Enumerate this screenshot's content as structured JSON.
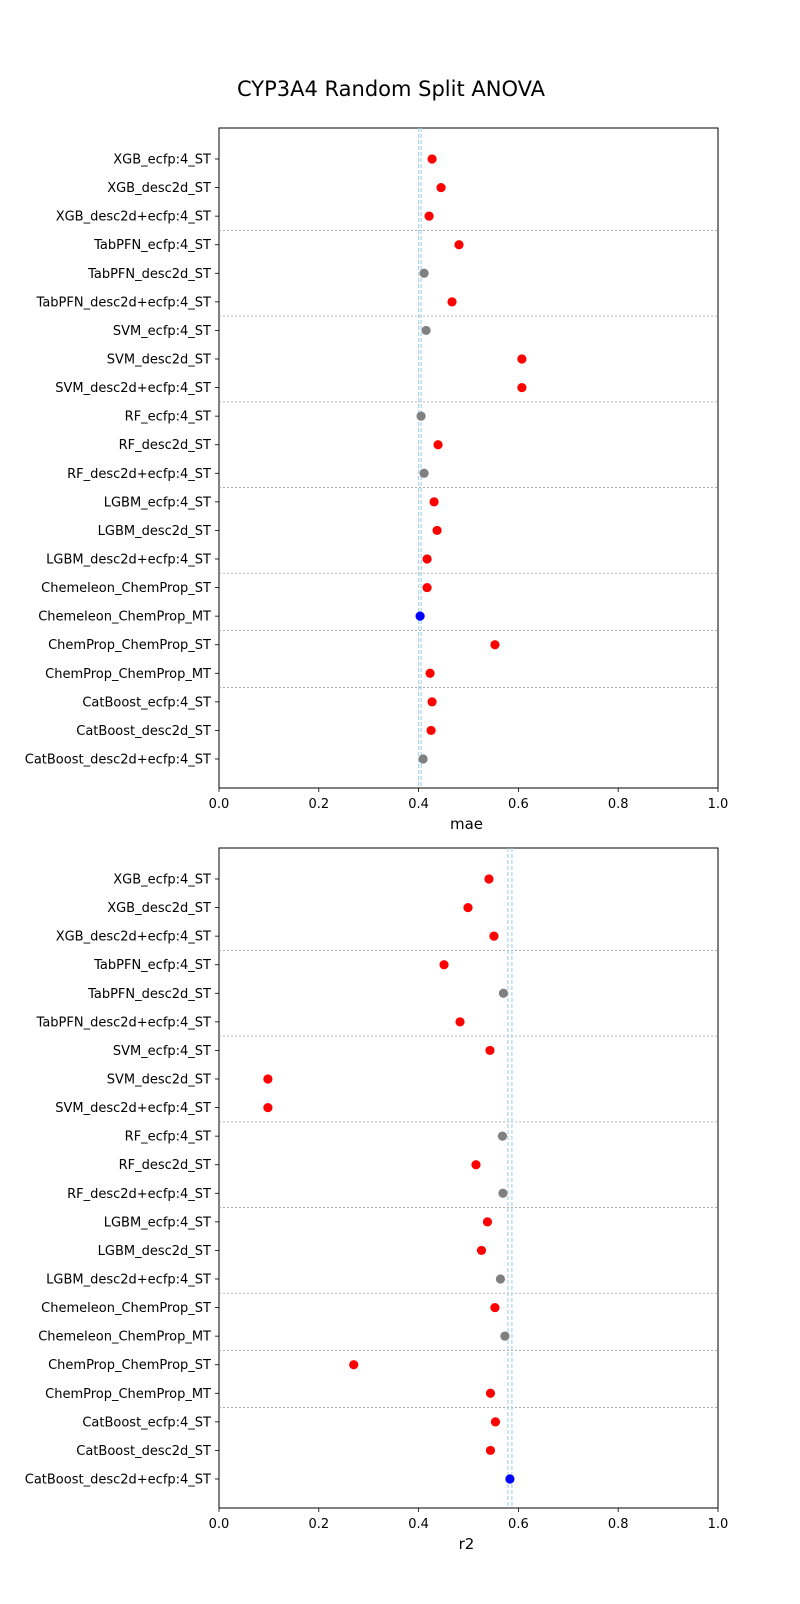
{
  "chart_data": [
    {
      "type": "scatter",
      "title": "CYP3A4 Random Split ANOVA",
      "xlabel": "mae",
      "ylabel": "",
      "xlim": [
        0.0,
        1.0
      ],
      "xticks": [
        "0.0",
        "0.2",
        "0.4",
        "0.6",
        "0.8",
        "1.0"
      ],
      "reference_lines": [
        0.4,
        0.405
      ],
      "categories": [
        "XGB_ecfp:4_ST",
        "XGB_desc2d_ST",
        "XGB_desc2d+ecfp:4_ST",
        "TabPFN_ecfp:4_ST",
        "TabPFN_desc2d_ST",
        "TabPFN_desc2d+ecfp:4_ST",
        "SVM_ecfp:4_ST",
        "SVM_desc2d_ST",
        "SVM_desc2d+ecfp:4_ST",
        "RF_ecfp:4_ST",
        "RF_desc2d_ST",
        "RF_desc2d+ecfp:4_ST",
        "LGBM_ecfp:4_ST",
        "LGBM_desc2d_ST",
        "LGBM_desc2d+ecfp:4_ST",
        "Chemeleon_ChemProp_ST",
        "Chemeleon_ChemProp_MT",
        "ChemProp_ChemProp_ST",
        "ChemProp_ChemProp_MT",
        "CatBoost_ecfp:4_ST",
        "CatBoost_desc2d_ST",
        "CatBoost_desc2d+ecfp:4_ST"
      ],
      "values": [
        0.427,
        0.445,
        0.421,
        0.481,
        0.411,
        0.467,
        0.415,
        0.607,
        0.607,
        0.405,
        0.439,
        0.411,
        0.431,
        0.437,
        0.417,
        0.417,
        0.403,
        0.553,
        0.423,
        0.427,
        0.425,
        0.409
      ],
      "status": [
        "sig",
        "sig",
        "sig",
        "sig",
        "ns",
        "sig",
        "ns",
        "sig",
        "sig",
        "ns",
        "sig",
        "ns",
        "sig",
        "sig",
        "sig",
        "sig",
        "best",
        "sig",
        "sig",
        "sig",
        "sig",
        "ns"
      ],
      "group_breaks_after": [
        3,
        6,
        9,
        12,
        15,
        17,
        19
      ]
    },
    {
      "type": "scatter",
      "title": "",
      "xlabel": "r2",
      "ylabel": "",
      "xlim": [
        0.0,
        1.0
      ],
      "xticks": [
        "0.0",
        "0.2",
        "0.4",
        "0.6",
        "0.8",
        "1.0"
      ],
      "reference_lines": [
        0.579,
        0.587
      ],
      "categories": [
        "XGB_ecfp:4_ST",
        "XGB_desc2d_ST",
        "XGB_desc2d+ecfp:4_ST",
        "TabPFN_ecfp:4_ST",
        "TabPFN_desc2d_ST",
        "TabPFN_desc2d+ecfp:4_ST",
        "SVM_ecfp:4_ST",
        "SVM_desc2d_ST",
        "SVM_desc2d+ecfp:4_ST",
        "RF_ecfp:4_ST",
        "RF_desc2d_ST",
        "RF_desc2d+ecfp:4_ST",
        "LGBM_ecfp:4_ST",
        "LGBM_desc2d_ST",
        "LGBM_desc2d+ecfp:4_ST",
        "Chemeleon_ChemProp_ST",
        "Chemeleon_ChemProp_MT",
        "ChemProp_ChemProp_ST",
        "ChemProp_ChemProp_MT",
        "CatBoost_ecfp:4_ST",
        "CatBoost_desc2d_ST",
        "CatBoost_desc2d+ecfp:4_ST"
      ],
      "values": [
        0.541,
        0.499,
        0.551,
        0.451,
        0.57,
        0.483,
        0.543,
        0.098,
        0.098,
        0.568,
        0.515,
        0.569,
        0.538,
        0.526,
        0.564,
        0.553,
        0.573,
        0.27,
        0.544,
        0.554,
        0.544,
        0.583
      ],
      "status": [
        "sig",
        "sig",
        "sig",
        "sig",
        "ns",
        "sig",
        "sig",
        "sig",
        "sig",
        "ns",
        "sig",
        "ns",
        "sig",
        "sig",
        "ns",
        "sig",
        "ns",
        "sig",
        "sig",
        "sig",
        "sig",
        "best"
      ],
      "group_breaks_after": [
        3,
        6,
        9,
        12,
        15,
        17,
        19
      ]
    }
  ],
  "colors": {
    "sig": "#ff0000",
    "ns": "#808080",
    "best": "#0000ff",
    "reference": "#a9d4e8",
    "separator": "#a0a0a0"
  }
}
